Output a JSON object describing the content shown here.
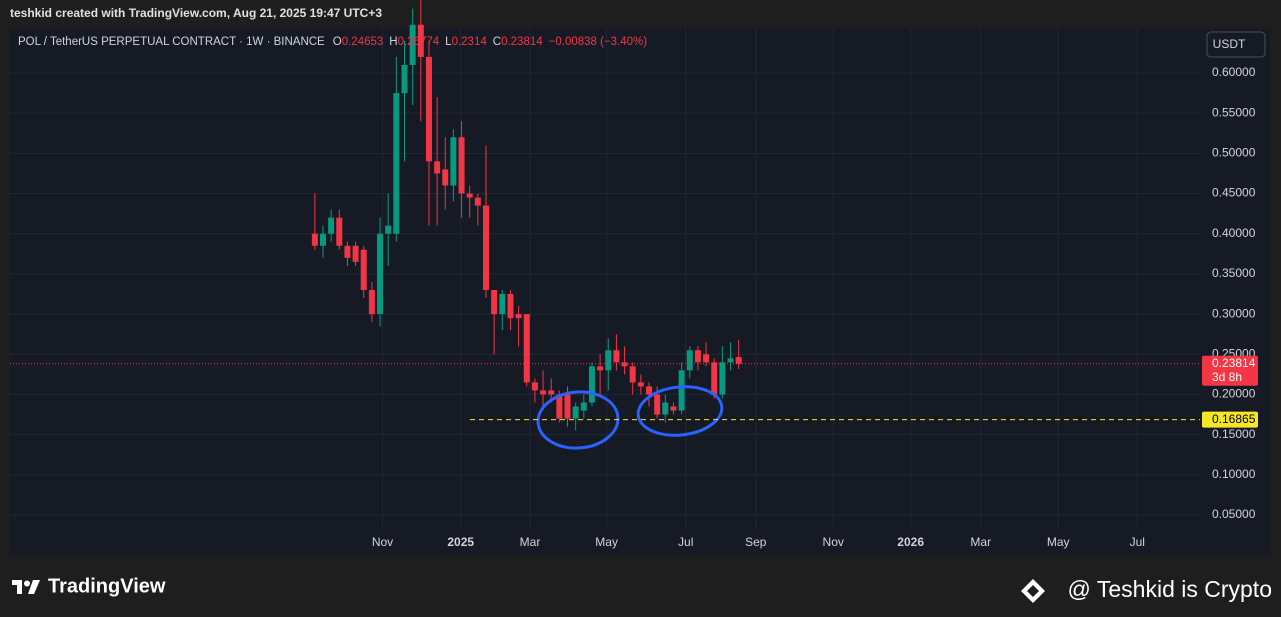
{
  "chart_data": {
    "type": "candlestick",
    "watermark_top": "teshkid created with TradingView.com, Aug 21, 2025 19:47 UTC+3",
    "symbol": "POL / TetherUS PERPETUAL CONTRACT · 1W · BINANCE",
    "ohlc_labels": [
      "O",
      "H",
      "L",
      "C"
    ],
    "change": "−0.00838 (−3.40%)",
    "currency": "USDT",
    "countdown": "3d 8h",
    "hline": 0.16865,
    "brand": "TradingView",
    "signature": "@ Teshkid is Crypto",
    "up_color": "#089981",
    "down_color": "#f23645",
    "hline_color": "#f5e626",
    "grid": true,
    "x": [
      0,
      1,
      2,
      3,
      4,
      5,
      6,
      7,
      8,
      9,
      10,
      11,
      12,
      13,
      14,
      15,
      16,
      17,
      18,
      19,
      20,
      21,
      22,
      23,
      24,
      25,
      26,
      27,
      28,
      29,
      30,
      31,
      32,
      33,
      34,
      35,
      36,
      37,
      38,
      39,
      40,
      41,
      42,
      43,
      44,
      45,
      46,
      47,
      48,
      49,
      50,
      51,
      52
    ],
    "open": [
      0.4,
      0.385,
      0.4,
      0.42,
      0.385,
      0.385,
      0.38,
      0.33,
      0.3,
      0.4,
      0.4,
      0.575,
      0.61,
      0.66,
      0.62,
      0.49,
      0.48,
      0.46,
      0.52,
      0.45,
      0.445,
      0.435,
      0.33,
      0.3,
      0.325,
      0.3,
      0.3,
      0.215,
      0.205,
      0.205,
      0.2,
      0.2,
      0.17,
      0.18,
      0.19,
      0.235,
      0.23,
      0.255,
      0.24,
      0.235,
      0.215,
      0.21,
      0.2,
      0.175,
      0.185,
      0.18,
      0.23,
      0.255,
      0.25,
      0.24,
      0.2,
      0.24,
      0.24653
    ],
    "high": [
      0.45,
      0.41,
      0.43,
      0.43,
      0.39,
      0.39,
      0.385,
      0.34,
      0.42,
      0.45,
      0.62,
      0.64,
      0.68,
      0.7,
      0.64,
      0.57,
      0.52,
      0.53,
      0.54,
      0.46,
      0.45,
      0.51,
      0.33,
      0.33,
      0.33,
      0.31,
      0.3,
      0.22,
      0.23,
      0.22,
      0.205,
      0.21,
      0.19,
      0.2,
      0.24,
      0.25,
      0.27,
      0.275,
      0.26,
      0.24,
      0.225,
      0.215,
      0.21,
      0.2,
      0.19,
      0.24,
      0.26,
      0.26,
      0.265,
      0.245,
      0.26,
      0.265,
      0.26774
    ],
    "low": [
      0.38,
      0.37,
      0.39,
      0.38,
      0.36,
      0.36,
      0.32,
      0.29,
      0.285,
      0.36,
      0.39,
      0.49,
      0.56,
      0.54,
      0.41,
      0.41,
      0.43,
      0.44,
      0.42,
      0.42,
      0.41,
      0.32,
      0.25,
      0.28,
      0.28,
      0.26,
      0.21,
      0.19,
      0.18,
      0.19,
      0.165,
      0.16,
      0.155,
      0.17,
      0.185,
      0.2,
      0.205,
      0.23,
      0.225,
      0.2,
      0.2,
      0.185,
      0.17,
      0.165,
      0.175,
      0.175,
      0.22,
      0.23,
      0.235,
      0.195,
      0.195,
      0.23,
      0.2314
    ],
    "close": [
      0.385,
      0.4,
      0.42,
      0.385,
      0.37,
      0.365,
      0.33,
      0.3,
      0.4,
      0.41,
      0.575,
      0.61,
      0.66,
      0.62,
      0.49,
      0.475,
      0.46,
      0.52,
      0.45,
      0.445,
      0.435,
      0.33,
      0.3,
      0.325,
      0.295,
      0.295,
      0.215,
      0.205,
      0.2,
      0.2,
      0.17,
      0.17,
      0.185,
      0.19,
      0.235,
      0.23,
      0.255,
      0.24,
      0.235,
      0.215,
      0.21,
      0.2,
      0.175,
      0.19,
      0.18,
      0.23,
      0.255,
      0.24,
      0.24,
      0.2,
      0.24,
      0.245,
      0.23814
    ],
    "xlim": [
      -37.4,
      108.6
    ],
    "ylim": [
      0,
      0.65
    ],
    "xticks": [
      {
        "value": 8.3,
        "label": "Nov"
      },
      {
        "value": 17.9,
        "label": "2025"
      },
      {
        "value": 26.4,
        "label": "Mar"
      },
      {
        "value": 35.8,
        "label": "May"
      },
      {
        "value": 45.5,
        "label": "Jul"
      },
      {
        "value": 54.1,
        "label": "Sep"
      },
      {
        "value": 63.6,
        "label": "Nov"
      },
      {
        "value": 73.1,
        "label": "2026"
      },
      {
        "value": 81.7,
        "label": "Mar"
      },
      {
        "value": 91.2,
        "label": "May"
      },
      {
        "value": 100.9,
        "label": "Jul"
      }
    ],
    "yticks": [
      {
        "value": 0.05,
        "label": "0.05000"
      },
      {
        "value": 0.1,
        "label": "0.10000"
      },
      {
        "value": 0.15,
        "label": "0.15000"
      },
      {
        "value": 0.2,
        "label": "0.20000"
      },
      {
        "value": 0.25,
        "label": "0.25000"
      },
      {
        "value": 0.3,
        "label": "0.30000"
      },
      {
        "value": 0.35,
        "label": "0.35000"
      },
      {
        "value": 0.4,
        "label": "0.40000"
      },
      {
        "value": 0.45,
        "label": "0.45000"
      },
      {
        "value": 0.5,
        "label": "0.50000"
      },
      {
        "value": 0.55,
        "label": "0.55000"
      },
      {
        "value": 0.6,
        "label": "0.60000"
      }
    ]
  }
}
